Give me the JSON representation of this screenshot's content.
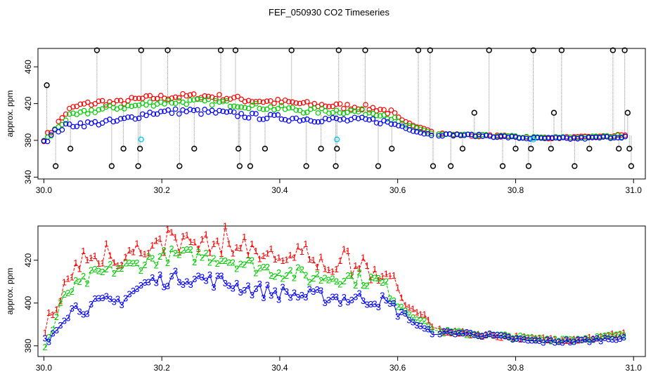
{
  "title": "FEF_050930  CO2 Timeseries",
  "chart_data": [
    {
      "type": "scatter",
      "ylabel": "approx. ppm",
      "xlim": [
        29.99,
        31.02
      ],
      "ylim": [
        338,
        480
      ],
      "xticks": [
        "30.0",
        "30.2",
        "30.4",
        "30.6",
        "30.8",
        "31.0"
      ],
      "xtick_values": [
        30.0,
        30.2,
        30.4,
        30.6,
        30.8,
        31.0
      ],
      "yticks": [
        "340",
        "380",
        "420",
        "460"
      ],
      "ytick_values": [
        340,
        380,
        420,
        460
      ],
      "colors": {
        "series1": "#ff0000",
        "series2": "#00cc00",
        "series3": "#0000ff",
        "outlier": "#000000",
        "flag": "#00ccff"
      },
      "outliers": [
        [
          30.005,
          440
        ],
        [
          30.02,
          352
        ],
        [
          30.045,
          371
        ],
        [
          30.09,
          478
        ],
        [
          30.115,
          352
        ],
        [
          30.135,
          371
        ],
        [
          30.16,
          352
        ],
        [
          30.163,
          371
        ],
        [
          30.165,
          478
        ],
        [
          30.21,
          478
        ],
        [
          30.23,
          352
        ],
        [
          30.255,
          371
        ],
        [
          30.3,
          478
        ],
        [
          30.325,
          478
        ],
        [
          30.33,
          371
        ],
        [
          30.332,
          352
        ],
        [
          30.35,
          352
        ],
        [
          30.375,
          371
        ],
        [
          30.42,
          478
        ],
        [
          30.445,
          352
        ],
        [
          30.47,
          371
        ],
        [
          30.495,
          352
        ],
        [
          30.497,
          371
        ],
        [
          30.5,
          478
        ],
        [
          30.545,
          478
        ],
        [
          30.567,
          352
        ],
        [
          30.59,
          371
        ],
        [
          30.635,
          478
        ],
        [
          30.655,
          478
        ],
        [
          30.66,
          352
        ],
        [
          30.69,
          352
        ],
        [
          30.71,
          371
        ],
        [
          30.73,
          410
        ],
        [
          30.755,
          478
        ],
        [
          30.778,
          352
        ],
        [
          30.8,
          371
        ],
        [
          30.822,
          352
        ],
        [
          30.826,
          371
        ],
        [
          30.83,
          478
        ],
        [
          30.86,
          371
        ],
        [
          30.865,
          410
        ],
        [
          30.878,
          478
        ],
        [
          30.9,
          352
        ],
        [
          30.925,
          371
        ],
        [
          30.965,
          478
        ],
        [
          30.975,
          371
        ],
        [
          30.985,
          478
        ],
        [
          30.99,
          410
        ],
        [
          30.993,
          371
        ],
        [
          30.996,
          352
        ]
      ],
      "flags": [
        [
          30.165,
          381
        ],
        [
          30.497,
          381
        ],
        [
          30.83,
          381
        ]
      ]
    },
    {
      "type": "line",
      "ylabel": "approx. ppm",
      "xlim": [
        29.99,
        31.02
      ],
      "ylim": [
        375,
        436
      ],
      "xticks": [
        "30.0",
        "30.2",
        "30.4",
        "30.6",
        "30.8",
        "31.0"
      ],
      "xtick_values": [
        30.0,
        30.2,
        30.4,
        30.6,
        30.8,
        31.0
      ],
      "yticks": [
        "380",
        "400",
        "420"
      ],
      "ytick_values": [
        380,
        400,
        420
      ],
      "series_labels": [
        "1",
        "2",
        "3"
      ],
      "colors": {
        "series1": "#ff0000",
        "series2": "#00cc00",
        "series3": "#0000ff"
      },
      "profile_x": [
        30.0,
        30.01,
        30.02,
        30.04,
        30.06,
        30.08,
        30.1,
        30.12,
        30.15,
        30.18,
        30.21,
        30.24,
        30.27,
        30.3,
        30.33,
        30.36,
        30.39,
        30.42,
        30.45,
        30.48,
        30.51,
        30.54,
        30.57,
        30.59,
        30.61,
        30.63,
        30.65,
        30.66,
        30.7,
        30.75,
        30.8,
        30.83,
        30.9,
        30.95,
        30.985
      ],
      "profile_y": [
        [
          382,
          388,
          395,
          412,
          418,
          420,
          422,
          420,
          424,
          426,
          427,
          428,
          428,
          427,
          425,
          423,
          422,
          421,
          419,
          418,
          417,
          416,
          414,
          410,
          400,
          396,
          393,
          388,
          386,
          385,
          384,
          383,
          383,
          384,
          386
        ],
        [
          379,
          384,
          392,
          405,
          408,
          412,
          414,
          416,
          417,
          420,
          422,
          422,
          422,
          421,
          419,
          417,
          415,
          414,
          412,
          412,
          412,
          411,
          410,
          404,
          397,
          393,
          390,
          387,
          386,
          385,
          384,
          383,
          383,
          384,
          385
        ],
        [
          380,
          383,
          390,
          396,
          398,
          398,
          400,
          400,
          405,
          410,
          411,
          412,
          411,
          410,
          408,
          406,
          405,
          404,
          403,
          403,
          402,
          402,
          401,
          398,
          395,
          390,
          387,
          386,
          386,
          385,
          383,
          382,
          382,
          383,
          384
        ]
      ]
    }
  ]
}
